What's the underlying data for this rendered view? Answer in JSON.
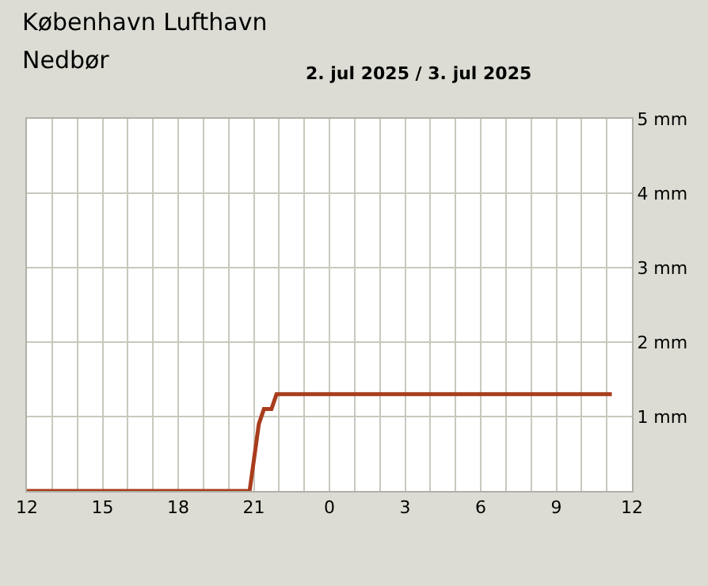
{
  "chart_data": {
    "type": "line",
    "title": "København Lufthavn",
    "subtitle": "Nedbør",
    "annotations": [
      "2. jul 2025 / 3. jul 2025"
    ],
    "x": [
      "2025-07-02T12:00",
      "2025-07-02T20:50",
      "2025-07-02T21:12",
      "2025-07-02T21:24",
      "2025-07-02T21:42",
      "2025-07-02T21:54",
      "2025-07-03T11:12"
    ],
    "series": [
      {
        "color": "#a83c1c",
        "values": [
          0,
          0,
          0.9,
          1.1,
          1.1,
          1.3,
          1.3
        ]
      }
    ],
    "xlim": [
      "2025-07-02T12:00",
      "2025-07-03T12:00"
    ],
    "xticks": [
      {
        "value": "2025-07-02T12:00",
        "label": "12"
      },
      {
        "value": "2025-07-02T13:00",
        "label": null
      },
      {
        "value": "2025-07-02T14:00",
        "label": null
      },
      {
        "value": "2025-07-02T15:00",
        "label": "15"
      },
      {
        "value": "2025-07-02T16:00",
        "label": null
      },
      {
        "value": "2025-07-02T17:00",
        "label": null
      },
      {
        "value": "2025-07-02T18:00",
        "label": "18"
      },
      {
        "value": "2025-07-02T19:00",
        "label": null
      },
      {
        "value": "2025-07-02T20:00",
        "label": null
      },
      {
        "value": "2025-07-02T21:00",
        "label": "21"
      },
      {
        "value": "2025-07-02T22:00",
        "label": null
      },
      {
        "value": "2025-07-02T23:00",
        "label": null
      },
      {
        "value": "2025-07-03T00:00",
        "label": "0"
      },
      {
        "value": "2025-07-03T01:00",
        "label": null
      },
      {
        "value": "2025-07-03T02:00",
        "label": null
      },
      {
        "value": "2025-07-03T03:00",
        "label": "3"
      },
      {
        "value": "2025-07-03T04:00",
        "label": null
      },
      {
        "value": "2025-07-03T05:00",
        "label": null
      },
      {
        "value": "2025-07-03T06:00",
        "label": "6"
      },
      {
        "value": "2025-07-03T07:00",
        "label": null
      },
      {
        "value": "2025-07-03T08:00",
        "label": null
      },
      {
        "value": "2025-07-03T09:00",
        "label": "9"
      },
      {
        "value": "2025-07-03T10:00",
        "label": null
      },
      {
        "value": "2025-07-03T11:00",
        "label": null
      },
      {
        "value": "2025-07-03T12:00",
        "label": "12"
      }
    ],
    "ylim": [
      0,
      5
    ],
    "yticks": [
      {
        "value": 0,
        "label": null
      },
      {
        "value": 1,
        "label": "1 mm"
      },
      {
        "value": 2,
        "label": "2 mm"
      },
      {
        "value": 3,
        "label": "3 mm"
      },
      {
        "value": 4,
        "label": "4 mm"
      },
      {
        "value": 5,
        "label": "5 mm"
      }
    ],
    "grid": true,
    "marker": "none",
    "line_style": "solid"
  }
}
